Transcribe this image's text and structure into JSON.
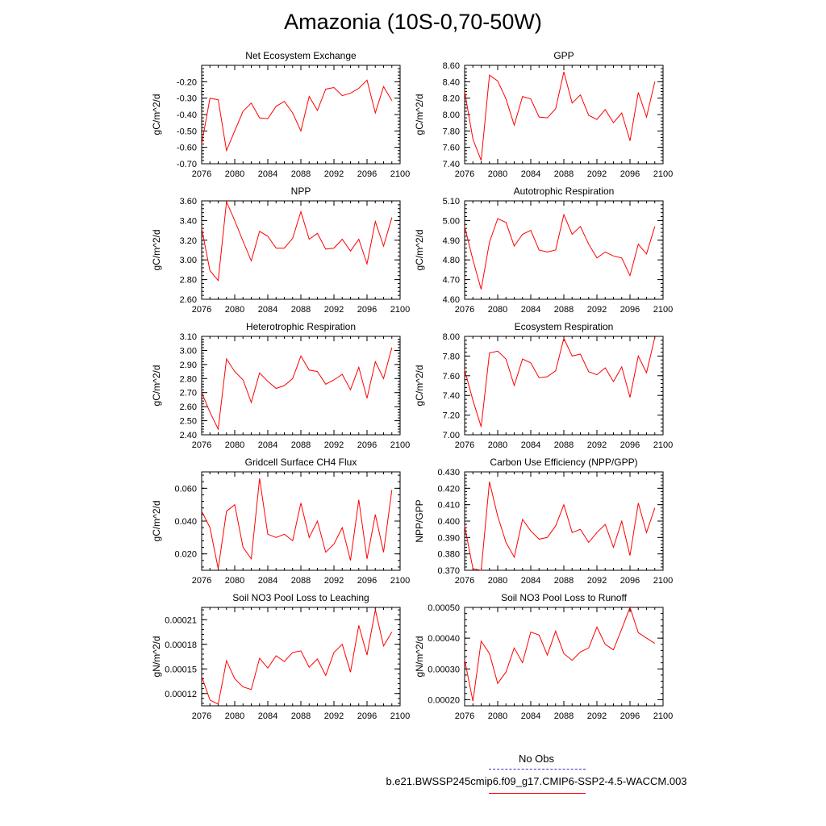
{
  "title": "Amazonia (10S-0,70-50W)",
  "legend": {
    "obs_label": "No Obs",
    "model_label": "b.e21.BWSSP245cmip6.f09_g17.CMIP6-SSP2-4.5-WACCM.003",
    "obs_color": "#3333cc",
    "model_color": "#ff0000"
  },
  "chart_data": [
    {
      "type": "line",
      "title": "Net Ecosystem Exchange",
      "ylabel": "gC/m^2/d",
      "xlim": [
        2076,
        2100
      ],
      "xticks": [
        "2076",
        "2080",
        "2084",
        "2088",
        "2092",
        "2096",
        "2100"
      ],
      "ylim": [
        -0.7,
        -0.1
      ],
      "yticks": [
        "-0.70",
        "-0.60",
        "-0.50",
        "-0.40",
        "-0.30",
        "-0.20"
      ],
      "series": [
        {
          "color": "#ff0000",
          "x": [
            2076,
            2077,
            2078,
            2079,
            2080,
            2081,
            2082,
            2083,
            2084,
            2085,
            2086,
            2087,
            2088,
            2089,
            2090,
            2091,
            2092,
            2093,
            2094,
            2095,
            2096,
            2097,
            2098,
            2099
          ],
          "values": [
            -0.58,
            -0.3,
            -0.31,
            -0.62,
            -0.5,
            -0.38,
            -0.33,
            -0.42,
            -0.425,
            -0.35,
            -0.32,
            -0.39,
            -0.5,
            -0.29,
            -0.375,
            -0.245,
            -0.235,
            -0.285,
            -0.27,
            -0.24,
            -0.19,
            -0.39,
            -0.23,
            -0.315
          ]
        }
      ]
    },
    {
      "type": "line",
      "title": "GPP",
      "ylabel": "gC/m^2/d",
      "xlim": [
        2076,
        2100
      ],
      "xticks": [
        "2076",
        "2080",
        "2084",
        "2088",
        "2092",
        "2096",
        "2100"
      ],
      "ylim": [
        7.4,
        8.6
      ],
      "yticks": [
        "7.40",
        "7.60",
        "7.80",
        "8.00",
        "8.20",
        "8.40",
        "8.60"
      ],
      "series": [
        {
          "color": "#ff0000",
          "x": [
            2076,
            2077,
            2078,
            2079,
            2080,
            2081,
            2082,
            2083,
            2084,
            2085,
            2086,
            2087,
            2088,
            2089,
            2090,
            2091,
            2092,
            2093,
            2094,
            2095,
            2096,
            2097,
            2098,
            2099
          ],
          "values": [
            8.28,
            7.7,
            7.44,
            8.48,
            8.41,
            8.19,
            7.87,
            8.22,
            8.19,
            7.97,
            7.96,
            8.07,
            8.52,
            8.14,
            8.24,
            7.99,
            7.94,
            8.06,
            7.9,
            8.02,
            7.68,
            8.27,
            7.97,
            8.4
          ]
        }
      ]
    },
    {
      "type": "line",
      "title": "NPP",
      "ylabel": "gC/m^2/d",
      "xlim": [
        2076,
        2100
      ],
      "xticks": [
        "2076",
        "2080",
        "2084",
        "2088",
        "2092",
        "2096",
        "2100"
      ],
      "ylim": [
        2.6,
        3.6
      ],
      "yticks": [
        "2.60",
        "2.80",
        "3.00",
        "3.20",
        "3.40",
        "3.60"
      ],
      "series": [
        {
          "color": "#ff0000",
          "x": [
            2076,
            2077,
            2078,
            2079,
            2080,
            2081,
            2082,
            2083,
            2084,
            2085,
            2086,
            2087,
            2088,
            2089,
            2090,
            2091,
            2092,
            2093,
            2094,
            2095,
            2096,
            2097,
            2098,
            2099
          ],
          "values": [
            3.32,
            2.89,
            2.79,
            3.59,
            3.4,
            3.19,
            2.99,
            3.29,
            3.24,
            3.12,
            3.12,
            3.22,
            3.49,
            3.21,
            3.27,
            3.11,
            3.12,
            3.21,
            3.09,
            3.21,
            2.96,
            3.39,
            3.14,
            3.43
          ]
        }
      ]
    },
    {
      "type": "line",
      "title": "Autotrophic Respiration",
      "ylabel": "gC/m^2/d",
      "xlim": [
        2076,
        2100
      ],
      "xticks": [
        "2076",
        "2080",
        "2084",
        "2088",
        "2092",
        "2096",
        "2100"
      ],
      "ylim": [
        4.6,
        5.1
      ],
      "yticks": [
        "4.60",
        "4.70",
        "4.80",
        "4.90",
        "5.00",
        "5.10"
      ],
      "series": [
        {
          "color": "#ff0000",
          "x": [
            2076,
            2077,
            2078,
            2079,
            2080,
            2081,
            2082,
            2083,
            2084,
            2085,
            2086,
            2087,
            2088,
            2089,
            2090,
            2091,
            2092,
            2093,
            2094,
            2095,
            2096,
            2097,
            2098,
            2099
          ],
          "values": [
            4.97,
            4.8,
            4.65,
            4.89,
            5.01,
            4.99,
            4.87,
            4.93,
            4.95,
            4.85,
            4.84,
            4.85,
            5.03,
            4.93,
            4.97,
            4.88,
            4.81,
            4.84,
            4.82,
            4.81,
            4.72,
            4.88,
            4.83,
            4.97
          ]
        }
      ]
    },
    {
      "type": "line",
      "title": "Heterotrophic Respiration",
      "ylabel": "gC/m^2/d",
      "xlim": [
        2076,
        2100
      ],
      "xticks": [
        "2076",
        "2080",
        "2084",
        "2088",
        "2092",
        "2096",
        "2100"
      ],
      "ylim": [
        2.4,
        3.1
      ],
      "yticks": [
        "2.40",
        "2.50",
        "2.60",
        "2.70",
        "2.80",
        "2.90",
        "3.00",
        "3.10"
      ],
      "series": [
        {
          "color": "#ff0000",
          "x": [
            2076,
            2077,
            2078,
            2079,
            2080,
            2081,
            2082,
            2083,
            2084,
            2085,
            2086,
            2087,
            2088,
            2089,
            2090,
            2091,
            2092,
            2093,
            2094,
            2095,
            2096,
            2097,
            2098,
            2099
          ],
          "values": [
            2.7,
            2.56,
            2.44,
            2.94,
            2.85,
            2.79,
            2.63,
            2.84,
            2.78,
            2.73,
            2.75,
            2.8,
            2.96,
            2.86,
            2.85,
            2.76,
            2.79,
            2.83,
            2.72,
            2.88,
            2.66,
            2.92,
            2.8,
            3.02
          ]
        }
      ]
    },
    {
      "type": "line",
      "title": "Ecosystem Respiration",
      "ylabel": "gC/m^2/d",
      "xlim": [
        2076,
        2100
      ],
      "xticks": [
        "2076",
        "2080",
        "2084",
        "2088",
        "2092",
        "2096",
        "2100"
      ],
      "ylim": [
        7.0,
        8.0
      ],
      "yticks": [
        "7.00",
        "7.20",
        "7.40",
        "7.60",
        "7.80",
        "8.00"
      ],
      "series": [
        {
          "color": "#ff0000",
          "x": [
            2076,
            2077,
            2078,
            2079,
            2080,
            2081,
            2082,
            2083,
            2084,
            2085,
            2086,
            2087,
            2088,
            2089,
            2090,
            2091,
            2092,
            2093,
            2094,
            2095,
            2096,
            2097,
            2098,
            2099
          ],
          "values": [
            7.66,
            7.35,
            7.08,
            7.83,
            7.85,
            7.77,
            7.5,
            7.77,
            7.73,
            7.58,
            7.59,
            7.65,
            7.98,
            7.8,
            7.82,
            7.64,
            7.61,
            7.68,
            7.54,
            7.69,
            7.38,
            7.8,
            7.63,
            7.99
          ]
        }
      ]
    },
    {
      "type": "line",
      "title": "Gridcell Surface CH4 Flux",
      "ylabel": "gC/m^2/d",
      "xlim": [
        2076,
        2100
      ],
      "xticks": [
        "2076",
        "2080",
        "2084",
        "2088",
        "2092",
        "2096",
        "2100"
      ],
      "ylim": [
        0.01,
        0.07
      ],
      "yticks": [
        "0.020",
        "0.040",
        "0.060"
      ],
      "series": [
        {
          "color": "#ff0000",
          "x": [
            2076,
            2077,
            2078,
            2079,
            2080,
            2081,
            2082,
            2083,
            2084,
            2085,
            2086,
            2087,
            2088,
            2089,
            2090,
            2091,
            2092,
            2093,
            2094,
            2095,
            2096,
            2097,
            2098,
            2099
          ],
          "values": [
            0.046,
            0.036,
            0.011,
            0.046,
            0.05,
            0.024,
            0.017,
            0.066,
            0.032,
            0.03,
            0.032,
            0.028,
            0.051,
            0.03,
            0.04,
            0.021,
            0.026,
            0.036,
            0.016,
            0.053,
            0.017,
            0.044,
            0.021,
            0.059
          ]
        }
      ]
    },
    {
      "type": "line",
      "title": "Carbon Use Efficiency (NPP/GPP)",
      "ylabel": "NPP/GPP",
      "xlim": [
        2076,
        2100
      ],
      "xticks": [
        "2076",
        "2080",
        "2084",
        "2088",
        "2092",
        "2096",
        "2100"
      ],
      "ylim": [
        0.37,
        0.43
      ],
      "yticks": [
        "0.370",
        "0.380",
        "0.390",
        "0.400",
        "0.410",
        "0.420",
        "0.430"
      ],
      "series": [
        {
          "color": "#ff0000",
          "x": [
            2076,
            2077,
            2078,
            2079,
            2080,
            2081,
            2082,
            2083,
            2084,
            2085,
            2086,
            2087,
            2088,
            2089,
            2090,
            2091,
            2092,
            2093,
            2094,
            2095,
            2096,
            2097,
            2098,
            2099
          ],
          "values": [
            0.397,
            0.371,
            0.37,
            0.424,
            0.403,
            0.387,
            0.378,
            0.401,
            0.394,
            0.389,
            0.39,
            0.397,
            0.41,
            0.393,
            0.395,
            0.387,
            0.393,
            0.398,
            0.384,
            0.4,
            0.379,
            0.411,
            0.393,
            0.408
          ]
        }
      ]
    },
    {
      "type": "line",
      "title": "Soil NO3 Pool Loss to Leaching",
      "ylabel": "gN/m^2/d",
      "xlim": [
        2076,
        2100
      ],
      "xticks": [
        "2076",
        "2080",
        "2084",
        "2088",
        "2092",
        "2096",
        "2100"
      ],
      "ylim": [
        0.000105,
        0.000225
      ],
      "yticks": [
        "0.00012",
        "0.00015",
        "0.00018",
        "0.00021"
      ],
      "series": [
        {
          "color": "#ff0000",
          "x": [
            2076,
            2077,
            2078,
            2079,
            2080,
            2081,
            2082,
            2083,
            2084,
            2085,
            2086,
            2087,
            2088,
            2089,
            2090,
            2091,
            2092,
            2093,
            2094,
            2095,
            2096,
            2097,
            2098,
            2099
          ],
          "values": [
            0.000141,
            0.000112,
            0.000107,
            0.00016,
            0.000138,
            0.000128,
            0.000125,
            0.000163,
            0.000151,
            0.000166,
            0.000159,
            0.00017,
            0.000172,
            0.000152,
            0.000162,
            0.000142,
            0.00017,
            0.00018,
            0.000146,
            0.000203,
            0.000167,
            0.000222,
            0.000178,
            0.000195
          ]
        }
      ]
    },
    {
      "type": "line",
      "title": "Soil NO3 Pool Loss to Runoff",
      "ylabel": "gN/m^2/d",
      "xlim": [
        2076,
        2100
      ],
      "xticks": [
        "2076",
        "2080",
        "2084",
        "2088",
        "2092",
        "2096",
        "2100"
      ],
      "ylim": [
        0.00018,
        0.0005
      ],
      "yticks": [
        "0.00020",
        "0.00030",
        "0.00040",
        "0.00050"
      ],
      "series": [
        {
          "color": "#ff0000",
          "x": [
            2076,
            2077,
            2078,
            2079,
            2080,
            2081,
            2082,
            2083,
            2084,
            2085,
            2086,
            2087,
            2088,
            2089,
            2090,
            2091,
            2092,
            2093,
            2094,
            2095,
            2096,
            2097,
            2098,
            2099
          ],
          "values": [
            0.00033,
            0.000195,
            0.00039,
            0.00035,
            0.000253,
            0.00029,
            0.000368,
            0.00032,
            0.00042,
            0.00041,
            0.000345,
            0.000423,
            0.00035,
            0.000328,
            0.000355,
            0.000368,
            0.000436,
            0.00038,
            0.000362,
            0.00043,
            0.0005,
            0.000418,
            0.0004,
            0.000383
          ]
        }
      ]
    }
  ]
}
